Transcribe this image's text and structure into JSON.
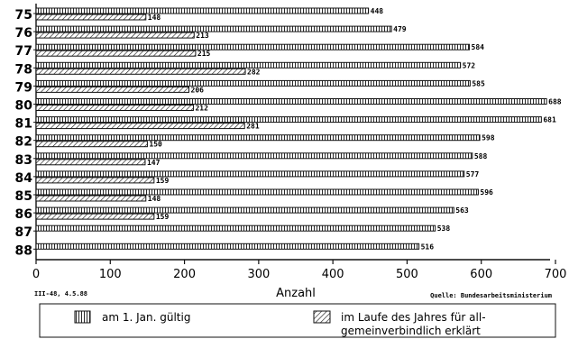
{
  "chart_data": {
    "type": "bar",
    "orientation": "horizontal",
    "categories": [
      "75",
      "76",
      "77",
      "78",
      "79",
      "80",
      "81",
      "82",
      "83",
      "84",
      "85",
      "86",
      "87",
      "88"
    ],
    "series": [
      {
        "name": "am 1. Jan. gültig",
        "values": [
          448,
          479,
          584,
          572,
          585,
          688,
          681,
          598,
          588,
          577,
          596,
          563,
          538,
          516
        ],
        "pattern": "vertical-lines"
      },
      {
        "name": "im Laufe des Jahres für allgemeinverbindlich erklärt",
        "values": [
          148,
          213,
          215,
          282,
          206,
          212,
          281,
          150,
          147,
          159,
          148,
          159,
          null,
          null
        ],
        "pattern": "diagonal-hatch"
      }
    ],
    "value_labels": {
      "series_1": [
        "448",
        "479",
        "584",
        "572",
        "585",
        "688",
        "681",
        "598",
        "588",
        "577",
        "596",
        "563",
        "538",
        "516"
      ],
      "series_2": [
        "148",
        "213",
        "215",
        "282",
        "206",
        "212",
        "281",
        "150",
        "147",
        "159",
        "148",
        "159",
        "",
        ""
      ]
    },
    "xlabel": "Anzahl",
    "ylabel": "",
    "xlim": [
      0,
      700
    ],
    "xticks": [
      "0",
      "100",
      "200",
      "300",
      "400",
      "500",
      "600",
      "700"
    ],
    "grid": false
  },
  "footer": {
    "left_note": "III-48, 4.5.88",
    "right_note": "Quelle: Bundesarbeitsministerium"
  },
  "legend": {
    "item1": "am 1. Jan. gültig",
    "item2_line1": "im Laufe des Jahres für all-",
    "item2_line2": "gemeinverbindlich erklärt"
  },
  "colors": {
    "ink": "#111111",
    "background": "#ffffff"
  }
}
